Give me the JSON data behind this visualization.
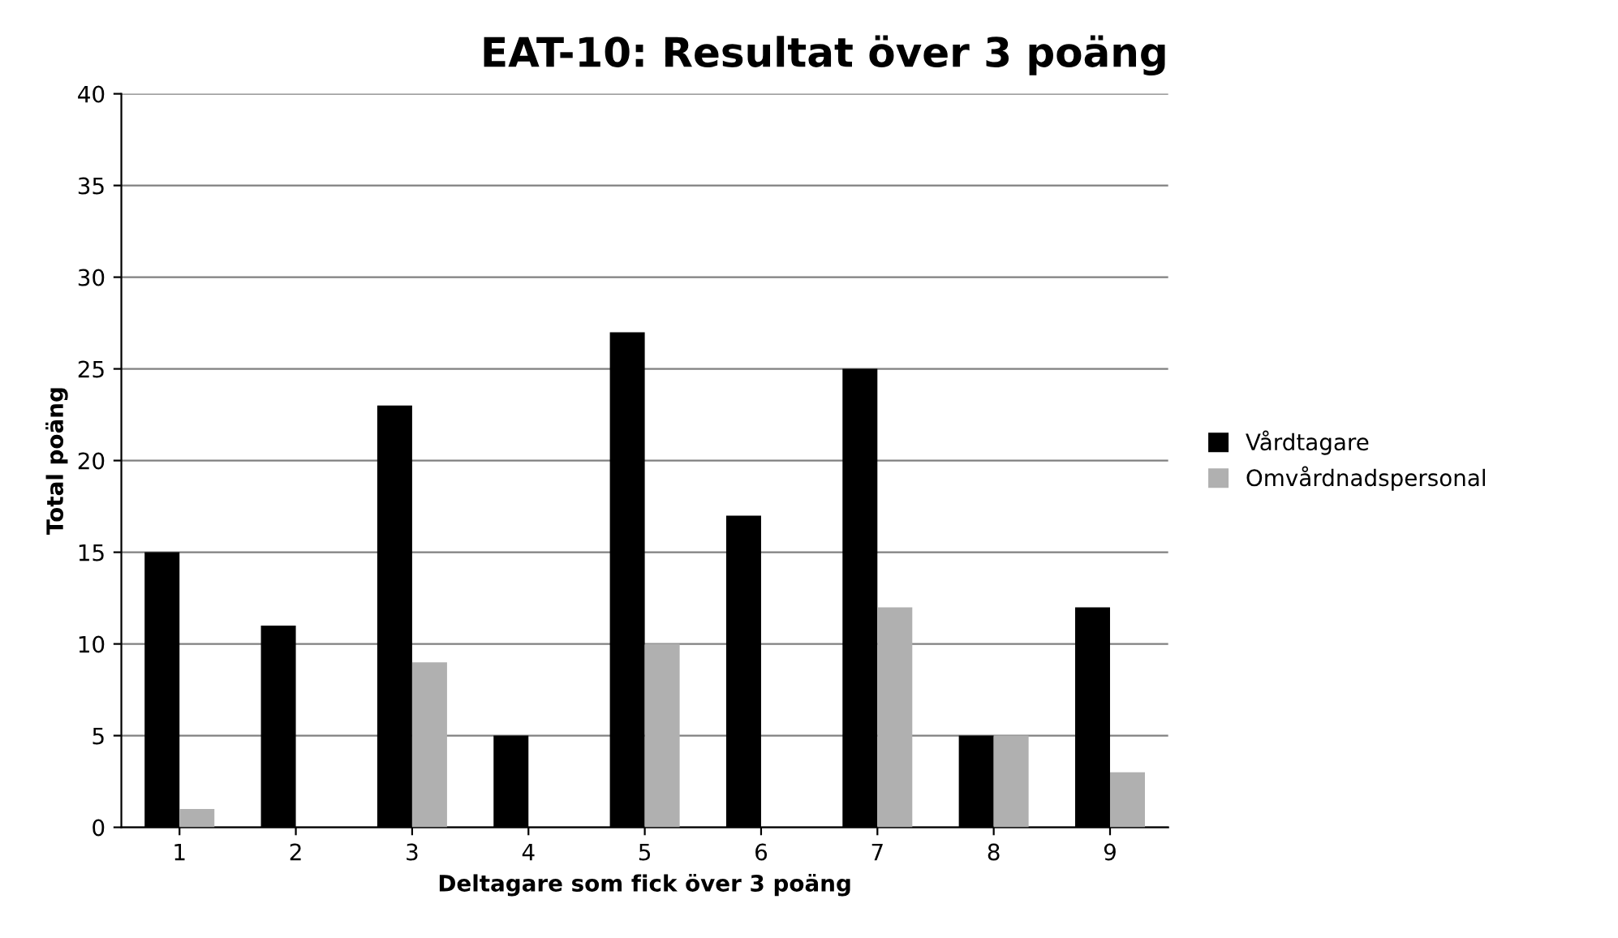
{
  "chart_data": {
    "type": "bar",
    "title": "EAT-10: Resultat över 3 poäng",
    "xlabel": "Deltagare som fick över 3 poäng",
    "ylabel": "Total poäng",
    "categories": [
      "1",
      "2",
      "3",
      "4",
      "5",
      "6",
      "7",
      "8",
      "9"
    ],
    "series": [
      {
        "name": "Vårdtagare",
        "color": "#000000",
        "values": [
          15,
          11,
          23,
          5,
          27,
          17,
          25,
          5,
          12
        ]
      },
      {
        "name": "Omvårdnadspersonal",
        "color": "#b0b0b0",
        "values": [
          1,
          0,
          9,
          0,
          10,
          0,
          12,
          5,
          3
        ]
      }
    ],
    "ylim": [
      0,
      40
    ],
    "yticks": [
      0,
      5,
      10,
      15,
      20,
      25,
      30,
      35,
      40
    ],
    "grid": "y",
    "legend": "right"
  }
}
